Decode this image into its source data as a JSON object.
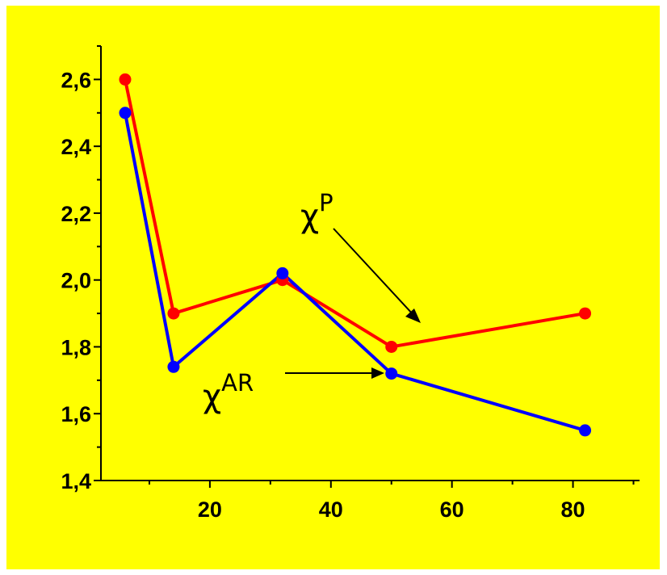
{
  "background_color": "#ffff00",
  "chart_data": {
    "type": "line",
    "title": "",
    "xlabel": "",
    "ylabel": "",
    "xlim": [
      2,
      91
    ],
    "ylim": [
      1.4,
      2.7
    ],
    "x_ticks": [
      20,
      40,
      60,
      80
    ],
    "x_tick_labels": [
      "20",
      "40",
      "60",
      "80"
    ],
    "y_ticks": [
      1.4,
      1.6,
      1.8,
      2.0,
      2.2,
      2.4,
      2.6
    ],
    "y_tick_labels": [
      "1,4",
      "1,6",
      "1,8",
      "2,0",
      "2,2",
      "2,4",
      "2,6"
    ],
    "grid": false,
    "legend": "none",
    "series": [
      {
        "color": "#ff0000",
        "x": [
          6,
          14,
          32,
          50,
          82
        ],
        "values": [
          2.6,
          1.9,
          2.0,
          1.8,
          1.9
        ]
      },
      {
        "color": "#0000ff",
        "x": [
          6,
          14,
          32,
          50,
          82
        ],
        "values": [
          2.5,
          1.74,
          2.02,
          1.72,
          1.55
        ]
      }
    ],
    "annotations": [
      {
        "base": "χ",
        "sup": "P",
        "points_to_series": 0,
        "points_to_x": 50
      },
      {
        "base": "χ",
        "sup": "AR",
        "points_to_series": 1,
        "points_to_x": 50
      }
    ]
  }
}
